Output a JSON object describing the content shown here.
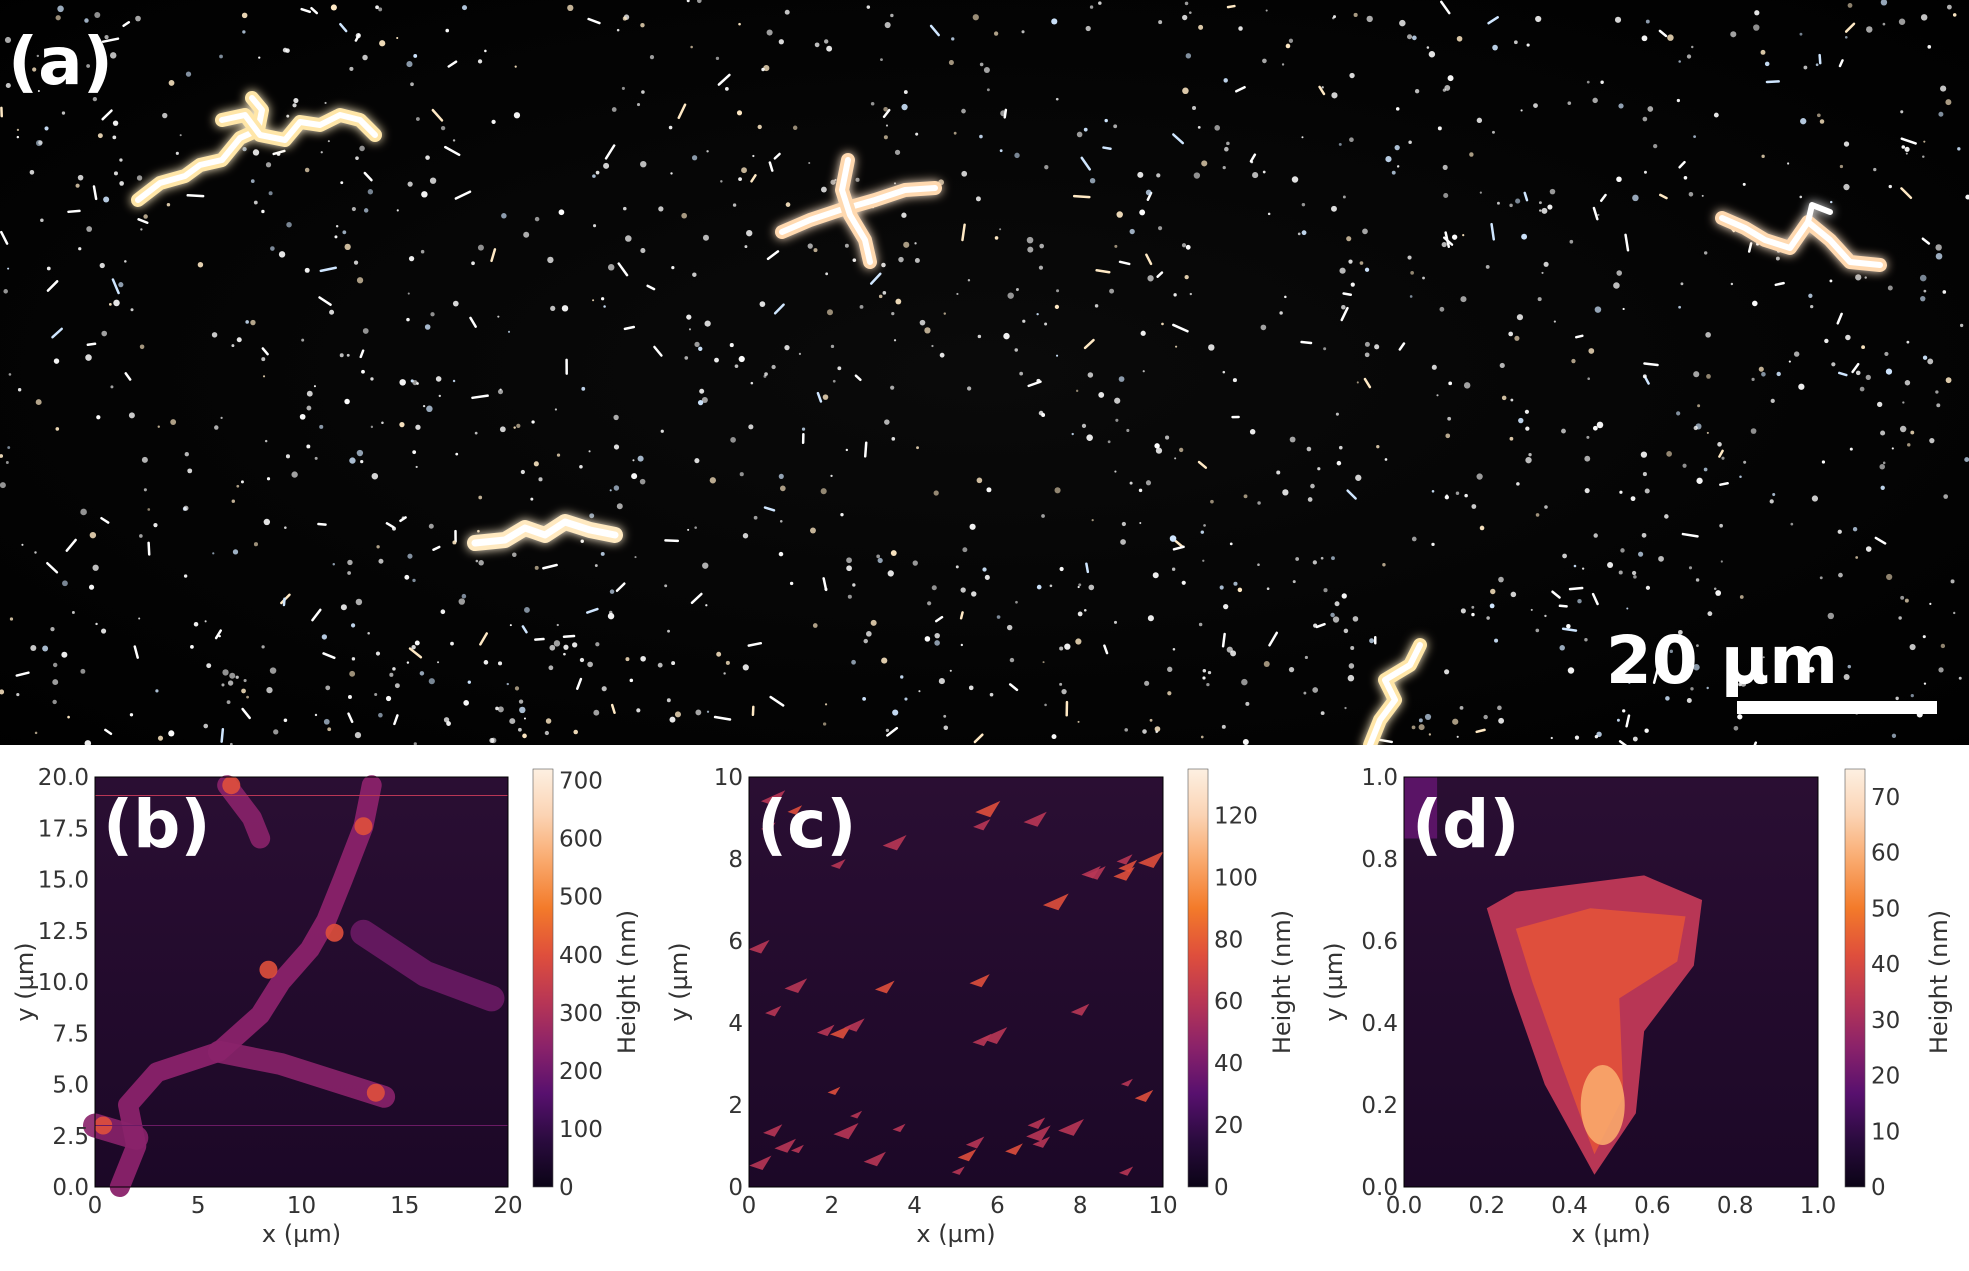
{
  "figure": {
    "panel_a": {
      "label": "(a)",
      "scale_bar_label": "20 µm"
    },
    "colors": {
      "colormap": [
        "#000004",
        "#1b0c41",
        "#4a0c6b",
        "#781c6d",
        "#a52c60",
        "#cf4446",
        "#ed6925",
        "#fb9b06",
        "#f7d13d",
        "#fcffa4"
      ],
      "afm_colormap": [
        "#0b0416",
        "#2a0b3e",
        "#57106e",
        "#8a226a",
        "#b83655",
        "#df4f3c",
        "#f37a2a",
        "#f9a86b",
        "#fbd3b3",
        "#fdf0e2"
      ]
    }
  },
  "chart_data": [
    {
      "type": "heatmap",
      "panel_label": "(b)",
      "xlabel": "x (µm)",
      "ylabel": "y (µm)",
      "xlim": [
        0,
        20
      ],
      "ylim": [
        0,
        20
      ],
      "x_ticks": [
        "0",
        "5",
        "10",
        "15",
        "20"
      ],
      "y_ticks": [
        "0.0",
        "2.5",
        "5.0",
        "7.5",
        "10.0",
        "12.5",
        "15.0",
        "17.5",
        "20.0"
      ],
      "colorbar_label": "Height (nm)",
      "colorbar_range": [
        0,
        720
      ],
      "colorbar_ticks": [
        "0",
        "100",
        "200",
        "300",
        "400",
        "500",
        "600",
        "700"
      ]
    },
    {
      "type": "heatmap",
      "panel_label": "(c)",
      "xlabel": "x (µm)",
      "ylabel": "y (µm)",
      "xlim": [
        0,
        10
      ],
      "ylim": [
        0,
        10
      ],
      "x_ticks": [
        "0",
        "2",
        "4",
        "6",
        "8",
        "10"
      ],
      "y_ticks": [
        "0",
        "2",
        "4",
        "6",
        "8",
        "10"
      ],
      "colorbar_label": "Height (nm)",
      "colorbar_range": [
        0,
        135
      ],
      "colorbar_ticks": [
        "0",
        "20",
        "40",
        "60",
        "80",
        "100",
        "120"
      ]
    },
    {
      "type": "heatmap",
      "panel_label": "(d)",
      "xlabel": "x (µm)",
      "ylabel": "y (µm)",
      "xlim": [
        0,
        1
      ],
      "ylim": [
        0,
        1
      ],
      "x_ticks": [
        "0.0",
        "0.2",
        "0.4",
        "0.6",
        "0.8",
        "1.0"
      ],
      "y_ticks": [
        "0.0",
        "0.2",
        "0.4",
        "0.6",
        "0.8",
        "1.0"
      ],
      "colorbar_label": "Height (nm)",
      "colorbar_range": [
        0,
        75
      ],
      "colorbar_ticks": [
        "0",
        "10",
        "20",
        "30",
        "40",
        "50",
        "60",
        "70"
      ]
    }
  ]
}
